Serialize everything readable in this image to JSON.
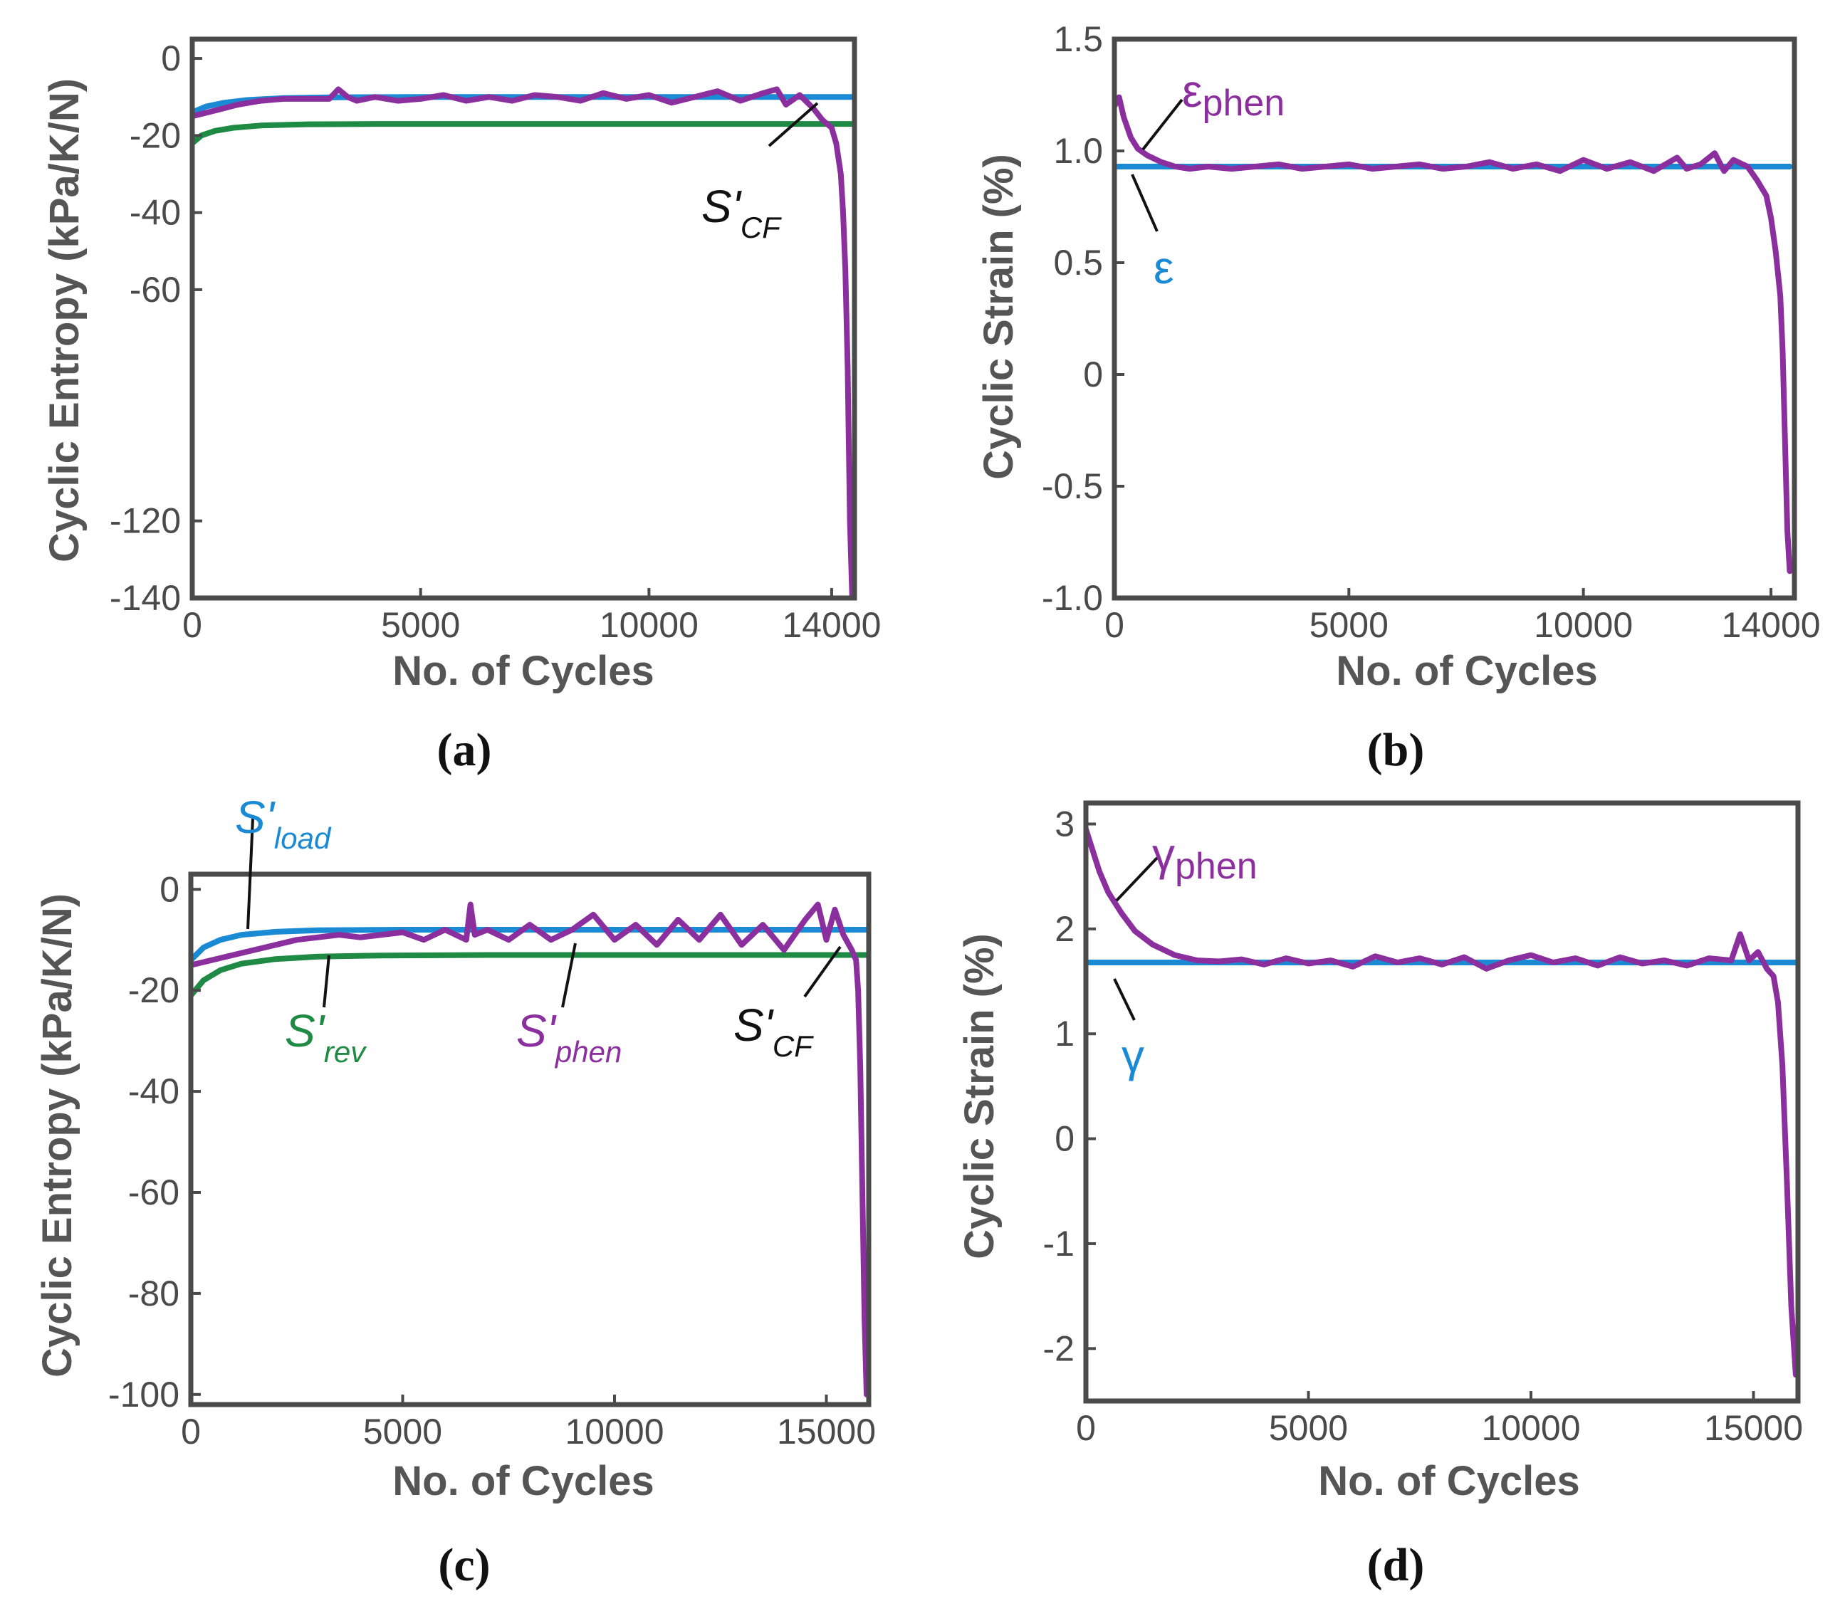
{
  "colors": {
    "blue": "#1a8ad4",
    "green": "#1f8a44",
    "purple": "#8c2f9e",
    "black": "#111111",
    "axis": "#4a4a4a"
  },
  "chart_data": [
    {
      "id": "a",
      "type": "line",
      "panel_label": "(a)",
      "xlabel": "No. of Cycles",
      "ylabel": "Cyclic Entropy (kPa/K/N)",
      "xlim": [
        0,
        14500
      ],
      "ylim": [
        -140,
        5
      ],
      "xticks": [
        0,
        5000,
        10000,
        14000
      ],
      "xtick_labels": [
        "0",
        "5000",
        "10000",
        "14000"
      ],
      "yticks": [
        0,
        -20,
        -40,
        -60,
        -120,
        -140
      ],
      "ytick_labels": [
        "0",
        "-20",
        "-40",
        "-60",
        "-120",
        "-140"
      ],
      "series": [
        {
          "name": "S'load",
          "color": "blue",
          "x": [
            0,
            300,
            700,
            1200,
            2000,
            3000,
            5000,
            8000,
            11000,
            14000,
            14450
          ],
          "y": [
            -14,
            -12.5,
            -11.5,
            -10.8,
            -10.3,
            -10.1,
            -10,
            -10,
            -10,
            -10,
            -10
          ]
        },
        {
          "name": "S'rev",
          "color": "green",
          "x": [
            0,
            200,
            500,
            900,
            1500,
            2500,
            4000,
            6000,
            9000,
            12000,
            14450
          ],
          "y": [
            -22,
            -20,
            -18.8,
            -18,
            -17.4,
            -17.1,
            -17,
            -17,
            -17,
            -17,
            -17
          ]
        },
        {
          "name": "S'phen",
          "color": "purple",
          "x": [
            0,
            500,
            1000,
            1500,
            2000,
            2500,
            3000,
            3200,
            3400,
            3600,
            4000,
            4500,
            5000,
            5500,
            6000,
            6500,
            7000,
            7500,
            8000,
            8500,
            9000,
            9500,
            10000,
            10500,
            11000,
            11500,
            12000,
            12500,
            12800,
            13000,
            13300,
            13600,
            13800,
            14000,
            14100,
            14200,
            14250,
            14300,
            14350,
            14400,
            14450
          ],
          "y": [
            -15,
            -13.5,
            -12,
            -11,
            -10.5,
            -10.5,
            -10.5,
            -8,
            -10,
            -11,
            -10,
            -11,
            -10.5,
            -9.5,
            -11,
            -10,
            -11,
            -9.5,
            -10,
            -11,
            -9,
            -10.5,
            -9.5,
            -11.5,
            -10,
            -8.5,
            -11,
            -9,
            -8,
            -12,
            -9.5,
            -13,
            -16,
            -18,
            -22,
            -30,
            -40,
            -55,
            -80,
            -120,
            -140
          ]
        }
      ],
      "annotations": [
        {
          "label": "S'",
          "subscript": "CF",
          "color": "black"
        }
      ]
    },
    {
      "id": "b",
      "type": "line",
      "panel_label": "(b)",
      "xlabel": "No. of Cycles",
      "ylabel": "Cyclic Strain (%)",
      "xlim": [
        0,
        14500
      ],
      "ylim": [
        -1.0,
        1.5
      ],
      "xticks": [
        0,
        5000,
        10000,
        14000
      ],
      "xtick_labels": [
        "0",
        "5000",
        "10000",
        "14000"
      ],
      "yticks": [
        1.5,
        1.0,
        0.5,
        0,
        -0.5,
        -1.0
      ],
      "ytick_labels": [
        "1.5",
        "1.0",
        "0.5",
        "0",
        "-0.5",
        "-1.0"
      ],
      "series": [
        {
          "name": "ε",
          "color": "blue",
          "x": [
            0,
            14400
          ],
          "y": [
            0.93,
            0.93
          ]
        },
        {
          "name": "εphen",
          "color": "purple",
          "x": [
            0,
            100,
            200,
            350,
            500,
            700,
            1000,
            1300,
            1600,
            2000,
            2500,
            3000,
            3500,
            4000,
            4500,
            5000,
            5500,
            6000,
            6500,
            7000,
            7500,
            8000,
            8500,
            9000,
            9500,
            10000,
            10500,
            11000,
            11500,
            12000,
            12200,
            12500,
            12800,
            13000,
            13200,
            13500,
            13700,
            13900,
            14000,
            14100,
            14200,
            14250,
            14300,
            14350,
            14400
          ],
          "y": [
            1.2,
            1.24,
            1.15,
            1.06,
            1.01,
            0.98,
            0.95,
            0.93,
            0.92,
            0.93,
            0.92,
            0.93,
            0.94,
            0.92,
            0.93,
            0.94,
            0.92,
            0.93,
            0.94,
            0.92,
            0.93,
            0.95,
            0.92,
            0.94,
            0.91,
            0.96,
            0.92,
            0.95,
            0.91,
            0.97,
            0.92,
            0.94,
            0.99,
            0.91,
            0.96,
            0.93,
            0.87,
            0.8,
            0.7,
            0.55,
            0.35,
            0.1,
            -0.3,
            -0.7,
            -0.88
          ]
        }
      ],
      "annotations": [
        {
          "label": "ε",
          "subscript": "phen",
          "color": "purple"
        },
        {
          "label": "ε",
          "subscript": "",
          "color": "blue"
        }
      ]
    },
    {
      "id": "c",
      "type": "line",
      "panel_label": "(c)",
      "xlabel": "No. of Cycles",
      "ylabel": "Cyclic Entropy (kPa/K/N)",
      "xlim": [
        0,
        16000
      ],
      "ylim": [
        -102,
        3
      ],
      "xticks": [
        0,
        5000,
        10000,
        15000
      ],
      "xtick_labels": [
        "0",
        "5000",
        "10000",
        "15000"
      ],
      "yticks": [
        0,
        -20,
        -40,
        -60,
        -80,
        -100
      ],
      "ytick_labels": [
        "0",
        "-20",
        "-40",
        "-60",
        "-80",
        "-100"
      ],
      "series": [
        {
          "name": "S'load",
          "color": "blue",
          "x": [
            0,
            300,
            700,
            1200,
            2000,
            3000,
            5000,
            8000,
            12000,
            16000
          ],
          "y": [
            -14,
            -11.5,
            -10,
            -9,
            -8.4,
            -8.1,
            -8,
            -8,
            -8,
            -8
          ]
        },
        {
          "name": "S'rev",
          "color": "green",
          "x": [
            0,
            300,
            700,
            1200,
            2000,
            3000,
            4500,
            7000,
            10000,
            13000,
            16000
          ],
          "y": [
            -21,
            -18,
            -16,
            -14.7,
            -13.8,
            -13.3,
            -13.1,
            -13,
            -13,
            -13,
            -13
          ]
        },
        {
          "name": "S'phen",
          "color": "purple",
          "x": [
            0,
            500,
            1000,
            1500,
            2000,
            2500,
            3000,
            3500,
            4000,
            4500,
            5000,
            5500,
            6000,
            6500,
            6600,
            6700,
            7000,
            7500,
            8000,
            8500,
            9000,
            9500,
            10000,
            10500,
            11000,
            11500,
            12000,
            12500,
            13000,
            13500,
            14000,
            14500,
            14800,
            15000,
            15200,
            15400,
            15600,
            15700,
            15750,
            15800,
            15850,
            15900,
            15950
          ],
          "y": [
            -15,
            -14,
            -13,
            -12,
            -11,
            -10,
            -9.5,
            -9,
            -9.5,
            -9,
            -8.5,
            -10,
            -8,
            -10,
            -3,
            -9,
            -8,
            -10,
            -7,
            -10,
            -8,
            -5,
            -10,
            -7,
            -11,
            -6,
            -10,
            -5,
            -11,
            -7,
            -12,
            -6,
            -3,
            -10,
            -4,
            -9,
            -12,
            -14,
            -20,
            -35,
            -60,
            -85,
            -100
          ]
        }
      ],
      "annotations": [
        {
          "label": "S'",
          "subscript": "load",
          "color": "blue"
        },
        {
          "label": "S'",
          "subscript": "rev",
          "color": "green"
        },
        {
          "label": "S'",
          "subscript": "phen",
          "color": "purple"
        },
        {
          "label": "S'",
          "subscript": "CF",
          "color": "black"
        }
      ]
    },
    {
      "id": "d",
      "type": "line",
      "panel_label": "(d)",
      "xlabel": "No. of Cycles",
      "ylabel": "Cyclic Strain (%)",
      "xlim": [
        0,
        16000
      ],
      "ylim": [
        -2.5,
        3.2
      ],
      "xticks": [
        0,
        5000,
        10000,
        15000
      ],
      "xtick_labels": [
        "0",
        "5000",
        "10000",
        "15000"
      ],
      "yticks": [
        3,
        2,
        1,
        0,
        -1,
        -2
      ],
      "ytick_labels": [
        "3",
        "2",
        "1",
        "0",
        "-1",
        "-2"
      ],
      "series": [
        {
          "name": "γ",
          "color": "blue",
          "x": [
            0,
            15950
          ],
          "y": [
            1.68,
            1.68
          ]
        },
        {
          "name": "γphen",
          "color": "purple",
          "x": [
            0,
            150,
            300,
            500,
            800,
            1100,
            1500,
            2000,
            2500,
            3000,
            3500,
            4000,
            4500,
            5000,
            5500,
            6000,
            6500,
            7000,
            7500,
            8000,
            8500,
            9000,
            9500,
            10000,
            10500,
            11000,
            11500,
            12000,
            12500,
            13000,
            13500,
            14000,
            14500,
            14700,
            14900,
            15100,
            15300,
            15450,
            15550,
            15650,
            15750,
            15850,
            15950
          ],
          "y": [
            2.95,
            2.75,
            2.55,
            2.35,
            2.15,
            1.98,
            1.85,
            1.75,
            1.7,
            1.69,
            1.71,
            1.66,
            1.72,
            1.67,
            1.7,
            1.64,
            1.74,
            1.68,
            1.72,
            1.66,
            1.73,
            1.62,
            1.7,
            1.75,
            1.68,
            1.72,
            1.65,
            1.73,
            1.67,
            1.7,
            1.65,
            1.72,
            1.7,
            1.95,
            1.7,
            1.78,
            1.62,
            1.55,
            1.3,
            0.7,
            -0.4,
            -1.6,
            -2.25
          ]
        }
      ],
      "annotations": [
        {
          "label": "γ",
          "subscript": "phen",
          "color": "purple"
        },
        {
          "label": "γ",
          "subscript": "",
          "color": "blue"
        }
      ]
    }
  ]
}
